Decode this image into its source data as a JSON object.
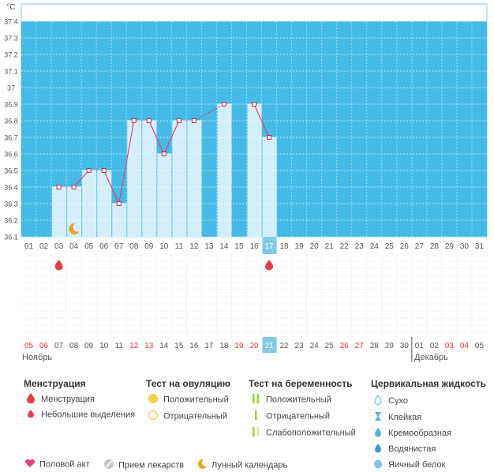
{
  "chart_data": {
    "type": "line",
    "ylabel": "°C",
    "ylim": [
      36.1,
      37.4
    ],
    "y_ticks": [
      "36.1",
      "36.2",
      "36.3",
      "36.4",
      "36.5",
      "36.6",
      "36.7",
      "36.8",
      "36.9",
      "37",
      "37.1",
      "37.2",
      "37.3",
      "37.4"
    ],
    "cycle_days": [
      "01",
      "02",
      "03",
      "04",
      "05",
      "06",
      "07",
      "08",
      "09",
      "10",
      "11",
      "12",
      "13",
      "14",
      "15",
      "16",
      "17",
      "18",
      "19",
      "20",
      "21",
      "22",
      "23",
      "24",
      "25",
      "26",
      "27",
      "28",
      "29",
      "30",
      "31"
    ],
    "current_cycle_day": "17",
    "series": [
      {
        "values": [
          null,
          null,
          36.4,
          36.4,
          36.5,
          36.5,
          36.3,
          36.8,
          36.8,
          36.6,
          36.8,
          36.8,
          null,
          36.9,
          null,
          36.9,
          36.7,
          null,
          null,
          null,
          null,
          null,
          null,
          null,
          null,
          null,
          null,
          null,
          null,
          null,
          null
        ]
      }
    ],
    "gap_segment": [
      12,
      14
    ],
    "menstruation_marker_days": [
      "03",
      "17"
    ],
    "lunar_marker_day": "04",
    "calendar_dates": [
      "05",
      "06",
      "07",
      "08",
      "09",
      "10",
      "11",
      "12",
      "13",
      "14",
      "15",
      "16",
      "17",
      "18",
      "19",
      "20",
      "21",
      "22",
      "23",
      "24",
      "25",
      "26",
      "27",
      "28",
      "29",
      "30",
      "01",
      "02",
      "03",
      "04",
      "05"
    ],
    "weekend_dates_idx": [
      0,
      1,
      7,
      8,
      14,
      15,
      21,
      22,
      28,
      29
    ],
    "current_date_idx": 16,
    "month_divider_idx": 26,
    "months": [
      "Ноябрь",
      "Декабрь"
    ]
  },
  "colors": {
    "plot_bg": "#44bbe6",
    "bar_fill": "#d4effb",
    "line": "#e0407a",
    "marker_stroke": "#d02050",
    "drop": "#e83a4e",
    "weekend": "#e8303a",
    "highlight": "#7fcbe6"
  },
  "legend": {
    "menstruation": {
      "title": "Менструация",
      "items": [
        "Менструация",
        "Небольшие выделения"
      ]
    },
    "ovulation_test": {
      "title": "Тест на овуляцию",
      "items": [
        "Положительный",
        "Отрицательный"
      ]
    },
    "pregnancy_test": {
      "title": "Тест на беременность",
      "items": [
        "Положительный",
        "Отрицательный",
        "Слабоположительный"
      ]
    },
    "cervical_fluid": {
      "title": "Цервикальная жидкость",
      "items": [
        "Сухо",
        "Клейкая",
        "Кремообразная",
        "Водянистая",
        "Яичный белок"
      ]
    }
  },
  "bottom_legend": [
    "Половой акт",
    "Прием лекарств",
    "Лунный календарь"
  ]
}
